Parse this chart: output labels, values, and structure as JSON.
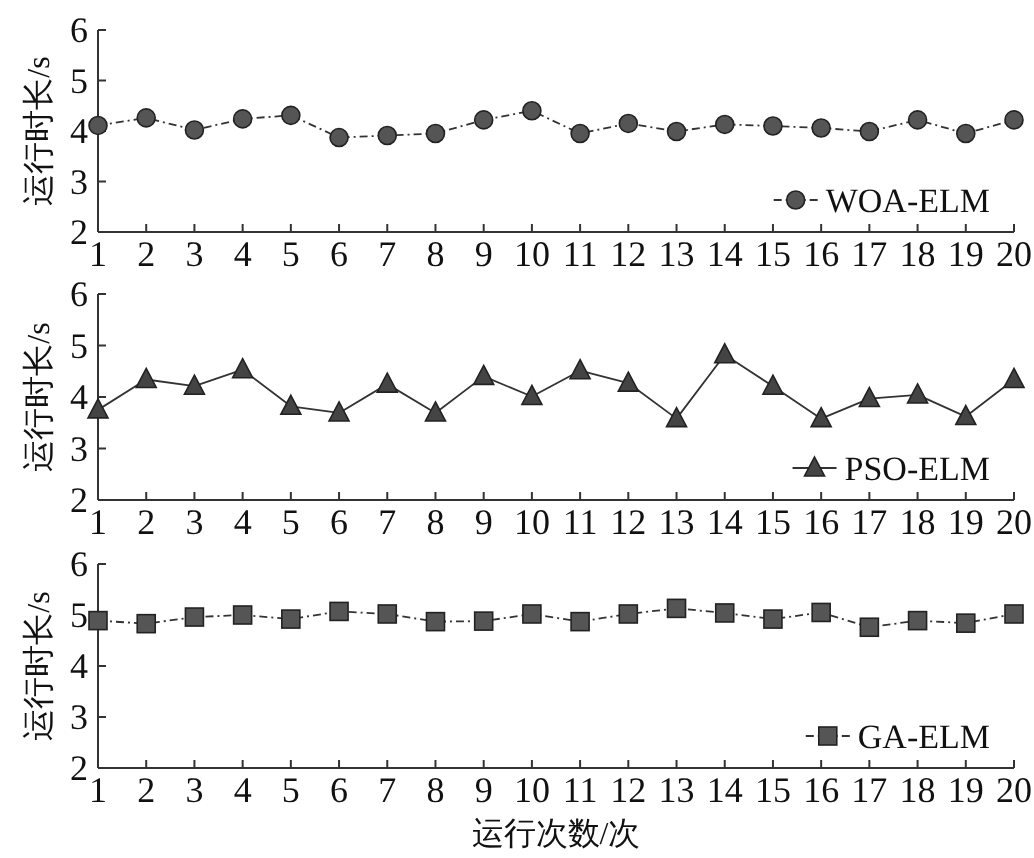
{
  "chart_data": [
    {
      "type": "line",
      "ylabel": "运行时长/s",
      "x": [
        1,
        2,
        3,
        4,
        5,
        6,
        7,
        8,
        9,
        10,
        11,
        12,
        13,
        14,
        15,
        16,
        17,
        18,
        19,
        20
      ],
      "xlim": [
        1,
        20
      ],
      "xticks": [
        1,
        2,
        3,
        4,
        5,
        6,
        7,
        8,
        9,
        10,
        11,
        12,
        13,
        14,
        15,
        16,
        17,
        18,
        19,
        20
      ],
      "ylim": [
        2,
        6
      ],
      "yticks": [
        2,
        3,
        4,
        5,
        6
      ],
      "legend": "bottom right",
      "series": [
        {
          "name": "WOA-ELM",
          "color": "#555555",
          "marker": "circle",
          "line_style": "dashed",
          "values": [
            4.11,
            4.26,
            4.02,
            4.24,
            4.31,
            3.87,
            3.91,
            3.95,
            4.22,
            4.4,
            3.95,
            4.15,
            3.99,
            4.13,
            4.1,
            4.06,
            3.99,
            4.22,
            3.95,
            4.22
          ]
        }
      ]
    },
    {
      "type": "line",
      "ylabel": "运行时长/s",
      "x": [
        1,
        2,
        3,
        4,
        5,
        6,
        7,
        8,
        9,
        10,
        11,
        12,
        13,
        14,
        15,
        16,
        17,
        18,
        19,
        20
      ],
      "xlim": [
        1,
        20
      ],
      "xticks": [
        1,
        2,
        3,
        4,
        5,
        6,
        7,
        8,
        9,
        10,
        11,
        12,
        13,
        14,
        15,
        16,
        17,
        18,
        19,
        20
      ],
      "ylim": [
        2,
        6
      ],
      "yticks": [
        2,
        3,
        4,
        5,
        6
      ],
      "legend": "bottom right",
      "series": [
        {
          "name": "PSO-ELM",
          "color": "#444444",
          "marker": "triangle",
          "line_style": "solid",
          "values": [
            3.75,
            4.34,
            4.21,
            4.53,
            3.82,
            3.69,
            4.25,
            3.69,
            4.4,
            4.01,
            4.51,
            4.27,
            3.58,
            4.82,
            4.21,
            3.58,
            3.97,
            4.04,
            3.62,
            4.34
          ]
        }
      ]
    },
    {
      "type": "line",
      "ylabel": "运行时长/s",
      "xlabel": "运行次数/次",
      "x": [
        1,
        2,
        3,
        4,
        5,
        6,
        7,
        8,
        9,
        10,
        11,
        12,
        13,
        14,
        15,
        16,
        17,
        18,
        19,
        20
      ],
      "xlim": [
        1,
        20
      ],
      "xticks": [
        1,
        2,
        3,
        4,
        5,
        6,
        7,
        8,
        9,
        10,
        11,
        12,
        13,
        14,
        15,
        16,
        17,
        18,
        19,
        20
      ],
      "ylim": [
        2,
        6
      ],
      "yticks": [
        2,
        3,
        4,
        5,
        6
      ],
      "legend": "bottom right",
      "series": [
        {
          "name": "GA-ELM",
          "color": "#555555",
          "marker": "square",
          "line_style": "dashed",
          "values": [
            4.89,
            4.83,
            4.96,
            5.0,
            4.92,
            5.07,
            5.02,
            4.87,
            4.88,
            5.02,
            4.87,
            5.02,
            5.13,
            5.04,
            4.92,
            5.05,
            4.76,
            4.89,
            4.84,
            5.02
          ]
        }
      ]
    }
  ]
}
